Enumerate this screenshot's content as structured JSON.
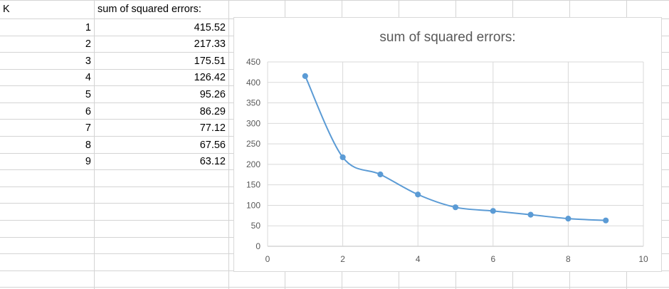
{
  "sheet": {
    "col_a_header": "K",
    "col_b_header": "sum of squared errors:",
    "rows": [
      {
        "k": "1",
        "sse": "415.52"
      },
      {
        "k": "2",
        "sse": "217.33"
      },
      {
        "k": "3",
        "sse": "175.51"
      },
      {
        "k": "4",
        "sse": "126.42"
      },
      {
        "k": "5",
        "sse": "95.26"
      },
      {
        "k": "6",
        "sse": "86.29"
      },
      {
        "k": "7",
        "sse": "77.12"
      },
      {
        "k": "8",
        "sse": "67.56"
      },
      {
        "k": "9",
        "sse": "63.12"
      }
    ]
  },
  "chart_data": {
    "type": "scatter",
    "title": "sum of squared errors:",
    "xlabel": "",
    "ylabel": "",
    "xlim": [
      0,
      10
    ],
    "ylim": [
      0,
      450
    ],
    "xticks": [
      0,
      2,
      4,
      6,
      8,
      10
    ],
    "yticks": [
      0,
      50,
      100,
      150,
      200,
      250,
      300,
      350,
      400,
      450
    ],
    "grid": true,
    "legend": "none",
    "series": [
      {
        "name": "sum of squared errors:",
        "x": [
          1,
          2,
          3,
          4,
          5,
          6,
          7,
          8,
          9
        ],
        "y": [
          415.52,
          217.33,
          175.51,
          126.42,
          95.26,
          86.29,
          77.12,
          67.56,
          63.12
        ],
        "color": "#5b9bd5",
        "style": "smooth-line-with-markers"
      }
    ]
  }
}
